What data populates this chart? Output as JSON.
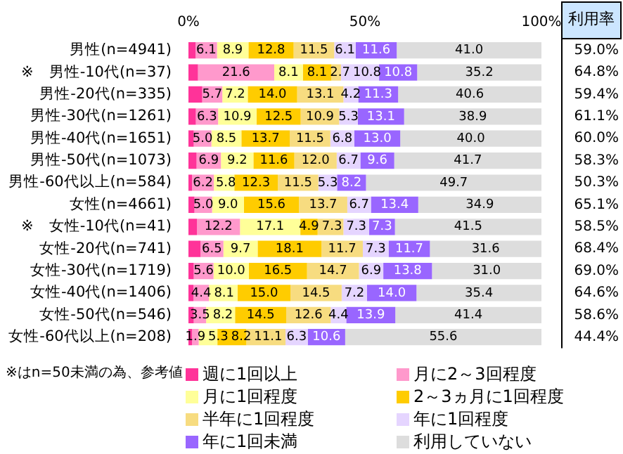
{
  "chart_data": {
    "type": "bar",
    "orientation": "horizontal",
    "stacked": true,
    "legend": "bottom",
    "categories": [
      "男性(n=4941)",
      "※　男性-10代(n=37)",
      "男性-20代(n=335)",
      "男性-30代(n=1261)",
      "男性-40代(n=1651)",
      "男性-50代(n=1073)",
      "男性-60代以上(n=584)",
      "女性(n=4661)",
      "※　女性-10代(n=41)",
      "女性-20代(n=741)",
      "女性-30代(n=1719)",
      "女性-40代(n=1406)",
      "女性-50代(n=546)",
      "女性-60代以上(n=208)"
    ],
    "xlim": [
      0,
      100
    ],
    "xticks": [
      {
        "value": 0,
        "label": "0%"
      },
      {
        "value": 50,
        "label": "50%"
      },
      {
        "value": 100,
        "label": "100%"
      }
    ],
    "series": [
      {
        "name": "週に1回以上",
        "color": "#ff3399",
        "values": [
          2.0,
          2.7,
          3.9,
          2.1,
          1.5,
          2.3,
          1.0,
          1.7,
          2.4,
          3.4,
          1.5,
          1.4,
          1.5,
          1.0
        ],
        "value_labels": [
          null,
          null,
          null,
          null,
          null,
          null,
          null,
          null,
          null,
          null,
          null,
          null,
          null,
          null
        ]
      },
      {
        "name": "月に2～3回程度",
        "color": "#ff99cc",
        "values": [
          6.1,
          21.6,
          5.7,
          6.3,
          5.0,
          6.9,
          6.2,
          5.0,
          12.2,
          6.5,
          5.6,
          4.4,
          3.5,
          1.9
        ],
        "value_labels": [
          "6.1",
          "21.6",
          "5.7",
          "6.3",
          "5.0",
          "6.9",
          "6.2",
          "5.0",
          "12.2",
          "6.5",
          "5.6",
          "4.4",
          "3.5",
          "1.9"
        ]
      },
      {
        "name": "月に1回程度",
        "color": "#ffff99",
        "values": [
          8.9,
          8.1,
          7.2,
          10.9,
          8.5,
          9.2,
          5.8,
          9.0,
          17.1,
          9.7,
          10.0,
          8.1,
          8.2,
          5.3
        ],
        "value_labels": [
          "8.9",
          "8.1",
          "7.2",
          "10.9",
          "8.5",
          "9.2",
          "5.8",
          "9.0",
          "17.1",
          "9.7",
          "10.0",
          "8.1",
          "8.2",
          "5.3"
        ]
      },
      {
        "name": "2～3ヵ月に1回程度",
        "color": "#ffcc00",
        "values": [
          12.8,
          8.1,
          14.0,
          12.5,
          13.7,
          11.6,
          12.3,
          15.6,
          4.9,
          18.1,
          16.5,
          15.0,
          14.5,
          8.2
        ],
        "value_labels": [
          "12.8",
          "8.1",
          "14.0",
          "12.5",
          "13.7",
          "11.6",
          "12.3",
          "15.6",
          "4.9",
          "18.1",
          "16.5",
          "15.0",
          "14.5",
          "8.2"
        ]
      },
      {
        "name": "半年に1回程度",
        "color": "#f7dc80",
        "values": [
          11.5,
          2.7,
          13.1,
          10.9,
          11.5,
          12.0,
          11.5,
          13.7,
          7.3,
          11.7,
          14.7,
          14.5,
          12.6,
          11.1
        ],
        "value_labels": [
          "11.5",
          "2.7",
          "13.1",
          "10.9",
          "11.5",
          "12.0",
          "11.5",
          "13.7",
          "7.3",
          "11.7",
          "14.7",
          "14.5",
          "12.6",
          "11.1"
        ]
      },
      {
        "name": "年に1回程度",
        "color": "#e5d5ff",
        "values": [
          6.1,
          10.8,
          4.2,
          5.3,
          6.8,
          6.7,
          5.3,
          6.7,
          7.3,
          7.3,
          6.9,
          7.2,
          4.4,
          6.3
        ],
        "value_labels": [
          "6.1",
          "10.8",
          "4.2",
          "5.3",
          "6.8",
          "6.7",
          "5.3",
          "6.7",
          "7.3",
          "7.3",
          "6.9",
          "7.2",
          "4.4",
          "6.3"
        ]
      },
      {
        "name": "年に1回未満",
        "color": "#9966ff",
        "values": [
          11.6,
          10.8,
          11.3,
          13.1,
          13.0,
          9.6,
          8.2,
          13.4,
          7.3,
          11.7,
          13.8,
          14.0,
          13.9,
          10.6
        ],
        "value_labels": [
          "11.6",
          "10.8",
          "11.3",
          "13.1",
          "13.0",
          "9.6",
          "8.2",
          "13.4",
          "7.3",
          "11.7",
          "13.8",
          "14.0",
          "13.9",
          "10.6"
        ]
      },
      {
        "name": "利用していない",
        "color": "#dddddd",
        "values": [
          41.0,
          35.2,
          40.6,
          38.9,
          40.0,
          41.7,
          49.7,
          34.9,
          41.5,
          31.6,
          31.0,
          35.4,
          41.4,
          55.6
        ],
        "value_labels": [
          "41.0",
          "35.2",
          "40.6",
          "38.9",
          "40.0",
          "41.7",
          "49.7",
          "34.9",
          "41.5",
          "31.6",
          "31.0",
          "35.4",
          "41.4",
          "55.6"
        ]
      }
    ],
    "annotations": [
      "利用率",
      "※はn=50未満の為、参考値",
      "59.0%",
      "64.8%",
      "59.4%",
      "61.1%",
      "60.0%",
      "58.3%",
      "50.3%",
      "65.1%",
      "58.5%",
      "68.4%",
      "69.0%",
      "64.6%",
      "58.6%",
      "44.4%"
    ]
  }
}
